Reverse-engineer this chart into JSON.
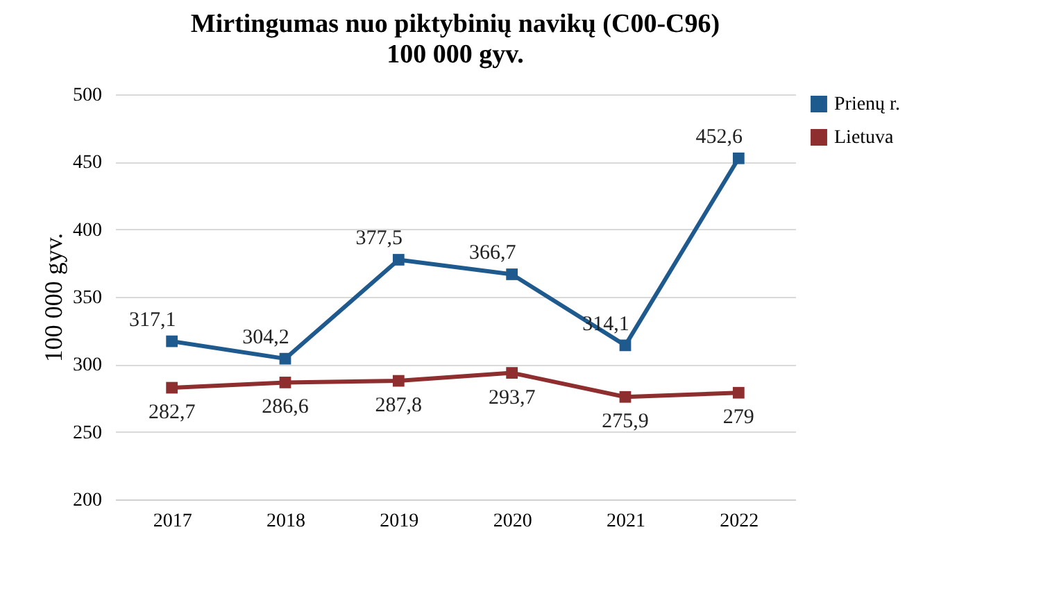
{
  "chart_data": {
    "type": "line",
    "title": "Mirtingumas nuo piktybinių navikų (C00-C96)",
    "subtitle": "100 000 gyv.",
    "ylabel": "100 000 gyv.",
    "categories": [
      "2017",
      "2018",
      "2019",
      "2020",
      "2021",
      "2022"
    ],
    "series": [
      {
        "name": "Prienų r.",
        "color": "#1f5a8e",
        "values": [
          317.1,
          304.2,
          377.5,
          366.7,
          314.1,
          452.6
        ],
        "value_labels": [
          "317,1",
          "304,2",
          "377,5",
          "366,7",
          "314,1",
          "452,6"
        ]
      },
      {
        "name": "Lietuva",
        "color": "#8e2e2e",
        "values": [
          282.7,
          286.6,
          287.8,
          293.7,
          275.9,
          279
        ],
        "value_labels": [
          "282,7",
          "286,6",
          "287,8",
          "293,7",
          "275,9",
          "279"
        ]
      }
    ],
    "ylim": [
      200,
      500
    ],
    "yticks": [
      200,
      250,
      300,
      350,
      400,
      450,
      500
    ],
    "grid": "y",
    "legend": "right",
    "marker": "square",
    "line_style": "solid"
  }
}
